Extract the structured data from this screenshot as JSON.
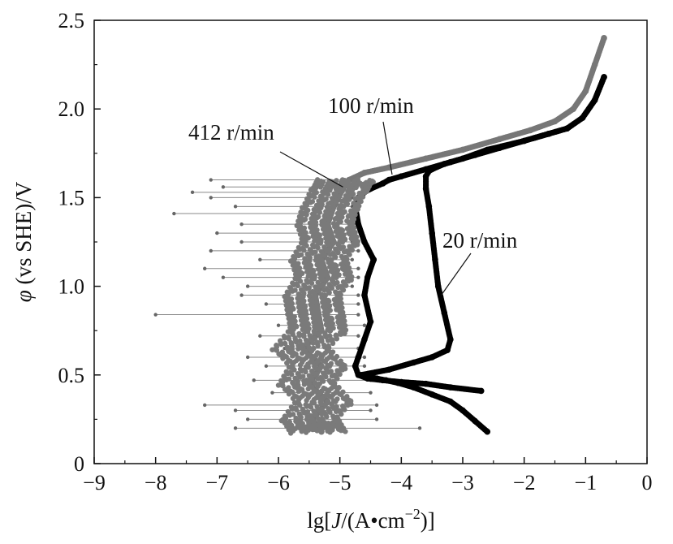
{
  "chart_data": {
    "type": "scatter",
    "title": "",
    "xlabel_parts": {
      "prefix": "lg[",
      "italic": "J",
      "mid": "/(A•cm",
      "sup": "−2",
      "suffix": ")]"
    },
    "ylabel_parts": {
      "italic": "φ",
      "rest": " (vs SHE)/V"
    },
    "xlim": [
      -9,
      0
    ],
    "ylim": [
      0,
      2.5
    ],
    "xticks": [
      -9,
      -8,
      -7,
      -6,
      -5,
      -4,
      -3,
      -2,
      -1,
      0
    ],
    "xtick_labels": [
      "−9",
      "−8",
      "−7",
      "−6",
      "−5",
      "−4",
      "−3",
      "−2",
      "−1",
      "0"
    ],
    "yticks": [
      0,
      0.5,
      1.0,
      1.5,
      2.0,
      2.5
    ],
    "ytick_labels": [
      "0",
      "0.5",
      "1.0",
      "1.5",
      "2.0",
      "2.5"
    ],
    "grid": false,
    "series": [
      {
        "key": "rpm20",
        "color": "#000000",
        "x": [
          -2.6,
          -2.8,
          -3.0,
          -3.2,
          -3.5,
          -3.8,
          -4.05,
          -4.25,
          -4.4,
          -4.65,
          -4.2,
          -3.8,
          -3.5,
          -3.25,
          -3.2,
          -3.3,
          -3.4,
          -3.45,
          -3.5,
          -3.55,
          -3.6,
          -3.6,
          -3.55,
          -3.5,
          -3.3,
          -3.0,
          -2.6,
          -2.0,
          -1.6,
          -1.3,
          -1.05,
          -0.85,
          -0.7
        ],
        "y": [
          0.18,
          0.24,
          0.3,
          0.35,
          0.39,
          0.43,
          0.455,
          0.47,
          0.48,
          0.5,
          0.53,
          0.57,
          0.6,
          0.64,
          0.7,
          0.85,
          1.0,
          1.15,
          1.3,
          1.45,
          1.55,
          1.62,
          1.65,
          1.66,
          1.69,
          1.72,
          1.77,
          1.82,
          1.86,
          1.89,
          1.95,
          2.05,
          2.18
        ]
      },
      {
        "key": "rpm100",
        "color": "#000000",
        "x": [
          -2.7,
          -3.2,
          -3.6,
          -4.0,
          -4.3,
          -4.55,
          -4.7,
          -4.75,
          -4.7,
          -4.6,
          -4.5,
          -4.6,
          -4.55,
          -4.45,
          -4.6,
          -4.7,
          -4.75,
          -4.7,
          -4.6,
          -4.5,
          -4.3,
          -4.2,
          -4.0,
          -3.6,
          -3.2,
          -2.8,
          -2.4,
          -2.0,
          -1.6,
          -1.3,
          -1.05,
          -0.85,
          -0.7
        ],
        "y": [
          0.41,
          0.43,
          0.45,
          0.46,
          0.47,
          0.48,
          0.5,
          0.55,
          0.6,
          0.7,
          0.8,
          0.95,
          1.05,
          1.15,
          1.25,
          1.35,
          1.45,
          1.5,
          1.53,
          1.55,
          1.58,
          1.6,
          1.62,
          1.66,
          1.7,
          1.74,
          1.78,
          1.82,
          1.86,
          1.89,
          1.95,
          2.05,
          2.18
        ]
      },
      {
        "key": "rpm412",
        "color": "#777777",
        "x": [
          -5.3,
          -5.45,
          -5.2,
          -5.5,
          -5.3,
          -5.6,
          -5.3,
          -5.35,
          -5.4,
          -5.2,
          -5.3,
          -5.1,
          -5.2,
          -5.1,
          -4.95,
          -4.85,
          -4.6,
          -4.2,
          -3.6,
          -3.0,
          -2.4,
          -1.9,
          -1.5,
          -1.2,
          -1.0,
          -0.85,
          -0.7
        ],
        "y": [
          0.18,
          0.25,
          0.35,
          0.45,
          0.55,
          0.65,
          0.75,
          0.85,
          0.95,
          1.05,
          1.15,
          1.25,
          1.35,
          1.45,
          1.55,
          1.6,
          1.64,
          1.67,
          1.72,
          1.77,
          1.83,
          1.88,
          1.93,
          2.0,
          2.1,
          2.25,
          2.4
        ]
      }
    ],
    "error_bars_412": {
      "y": [
        0.2,
        0.25,
        0.3,
        0.33,
        0.4,
        0.47,
        0.55,
        0.6,
        0.65,
        0.72,
        0.78,
        0.84,
        0.9,
        0.95,
        1.0,
        1.05,
        1.1,
        1.15,
        1.2,
        1.25,
        1.3,
        1.35,
        1.41,
        1.45,
        1.5,
        1.53,
        1.56,
        1.6
      ],
      "x_min": [
        -6.7,
        -6.5,
        -6.7,
        -7.2,
        -6.1,
        -6.4,
        -6.2,
        -6.5,
        -5.9,
        -6.3,
        -6.0,
        -8.0,
        -6.2,
        -6.6,
        -6.5,
        -6.9,
        -7.2,
        -6.3,
        -7.1,
        -6.6,
        -7.0,
        -6.6,
        -7.7,
        -6.7,
        -7.1,
        -7.4,
        -6.9,
        -7.1
      ],
      "x_max": [
        -3.7,
        -4.4,
        -4.5,
        -4.4,
        -4.5,
        -4.5,
        -4.6,
        -4.6,
        -4.7,
        -4.7,
        -4.6,
        -4.7,
        -4.7,
        -4.7,
        -4.8,
        -4.7,
        -4.7,
        -4.8,
        -4.7,
        -4.8,
        -4.8,
        -4.8,
        -4.8,
        -4.8,
        -4.8,
        -4.8,
        -4.85,
        -4.85
      ]
    },
    "annotations": [
      {
        "text": "412 r/min",
        "points_to": [
          -4.95,
          1.56
        ]
      },
      {
        "text": "100 r/min",
        "points_to": [
          -4.15,
          1.63
        ]
      },
      {
        "text": "20 r/min",
        "points_to": [
          -3.35,
          0.95
        ]
      }
    ]
  }
}
